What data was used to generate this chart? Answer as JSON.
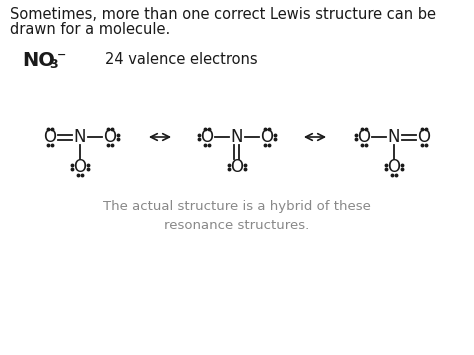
{
  "bg_color": "#ffffff",
  "text_color": "#1a1a1a",
  "gray_color": "#888888",
  "top_text1": "Sometimes, more than one correct Lewis structure can be",
  "top_text2": "drawn for a molecule.",
  "valence_text": "24 valence electrons",
  "bottom_text": "The actual structure is a hybrid of these\nresonance structures.",
  "figsize": [
    4.74,
    3.55
  ],
  "dpi": 100
}
